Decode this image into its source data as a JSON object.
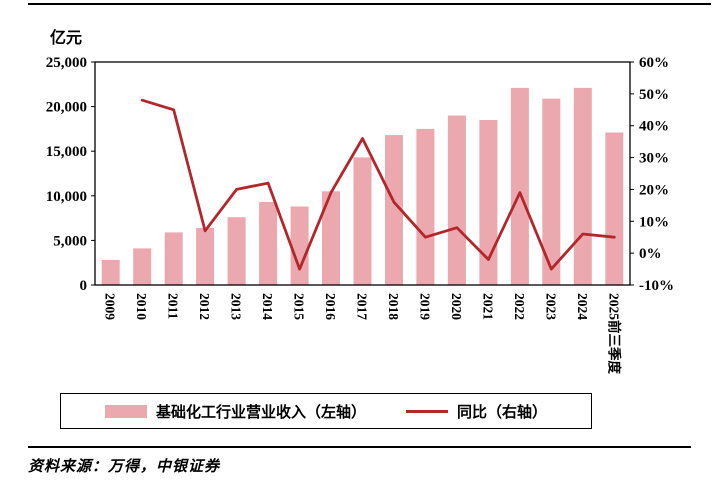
{
  "chart_data": {
    "type": "bar+line",
    "title": "",
    "categories": [
      "2009",
      "2010",
      "2011",
      "2012",
      "2013",
      "2014",
      "2015",
      "2016",
      "2017",
      "2018",
      "2019",
      "2020",
      "2021",
      "2022",
      "2023",
      "2024",
      "2025前三季度"
    ],
    "series": [
      {
        "name": "基础化工行业营业收入（左轴）",
        "type": "bar",
        "axis": "left",
        "color": "#EBA8AF",
        "values": [
          2800,
          4100,
          5900,
          6400,
          7600,
          9300,
          8800,
          10500,
          14300,
          16800,
          17500,
          19000,
          18500,
          22100,
          20900,
          22100,
          17100
        ]
      },
      {
        "name": "同比（右轴）",
        "type": "line",
        "axis": "right",
        "color": "#B2262C",
        "values": [
          null,
          48,
          45,
          7,
          20,
          22,
          -5,
          19,
          36,
          16,
          5,
          8,
          -2,
          19,
          -5,
          6,
          5
        ]
      }
    ],
    "left_axis": {
      "unit": "亿元",
      "min": 0,
      "max": 25000,
      "tick_step": 5000,
      "tick_labels": [
        "25,000",
        "20,000",
        "15,000",
        "10,000",
        "5,000",
        "0"
      ]
    },
    "right_axis": {
      "min": -10,
      "max": 60,
      "tick_step": 10,
      "tick_labels": [
        "60%",
        "50%",
        "40%",
        "30%",
        "20%",
        "10%",
        "0%",
        "-10%"
      ]
    },
    "grid": false,
    "legend_position": "bottom"
  },
  "footer": {
    "source_note": "资料来源：万得，中银证券"
  }
}
